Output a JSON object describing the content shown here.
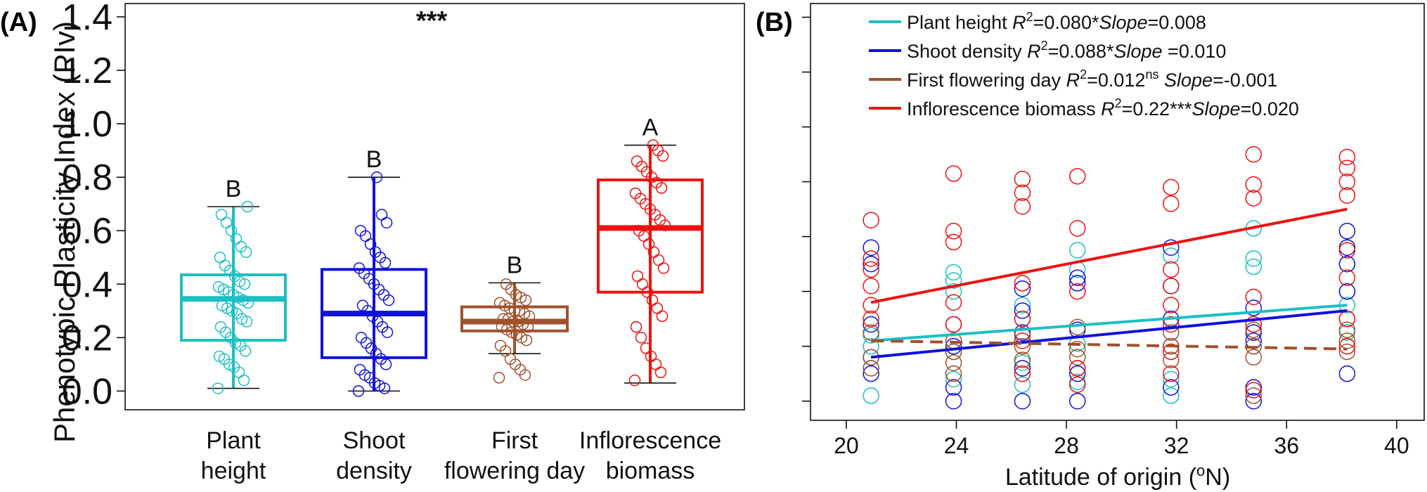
{
  "chart_data": [
    {
      "panel_label": "(A)",
      "type": "box",
      "ylabel": "Phenotypic Plasticity Index (PIv)",
      "ylim": [
        -0.07,
        1.45
      ],
      "yticks": [
        "0.0",
        "0.2",
        "0.4",
        "0.6",
        "0.8",
        "1.0",
        "1.2",
        "1.4"
      ],
      "significance": "***",
      "categories": [
        {
          "label_lines": [
            "Plant",
            "height"
          ],
          "color": "#1DBFC3",
          "min": 0.01,
          "q1": 0.19,
          "median": 0.345,
          "q3": 0.435,
          "max": 0.69,
          "group": "B",
          "points": [
            0.01,
            0.04,
            0.07,
            0.09,
            0.1,
            0.12,
            0.13,
            0.15,
            0.17,
            0.18,
            0.2,
            0.22,
            0.24,
            0.26,
            0.27,
            0.29,
            0.3,
            0.31,
            0.32,
            0.33,
            0.34,
            0.35,
            0.36,
            0.37,
            0.38,
            0.39,
            0.4,
            0.41,
            0.43,
            0.45,
            0.47,
            0.5,
            0.52,
            0.54,
            0.57,
            0.6,
            0.63,
            0.66,
            0.69
          ]
        },
        {
          "label_lines": [
            "Shoot",
            "density"
          ],
          "color": "#1111DD",
          "min": 0.0,
          "q1": 0.125,
          "median": 0.29,
          "q3": 0.455,
          "max": 0.8,
          "group": "B",
          "points": [
            0.0,
            0.01,
            0.02,
            0.03,
            0.05,
            0.06,
            0.08,
            0.1,
            0.12,
            0.14,
            0.16,
            0.18,
            0.2,
            0.22,
            0.24,
            0.26,
            0.28,
            0.3,
            0.32,
            0.34,
            0.36,
            0.38,
            0.4,
            0.42,
            0.44,
            0.46,
            0.48,
            0.5,
            0.52,
            0.55,
            0.58,
            0.6,
            0.63,
            0.66,
            0.8
          ]
        },
        {
          "label_lines": [
            "First",
            "flowering day"
          ],
          "color": "#A0522D",
          "min": 0.14,
          "q1": 0.225,
          "median": 0.26,
          "q3": 0.315,
          "max": 0.405,
          "group": "B",
          "points": [
            0.05,
            0.06,
            0.08,
            0.1,
            0.12,
            0.15,
            0.17,
            0.19,
            0.2,
            0.21,
            0.22,
            0.23,
            0.24,
            0.24,
            0.25,
            0.26,
            0.26,
            0.27,
            0.27,
            0.28,
            0.29,
            0.3,
            0.3,
            0.31,
            0.32,
            0.33,
            0.34,
            0.35,
            0.36,
            0.38,
            0.4
          ]
        },
        {
          "label_lines": [
            "Inflorescence",
            "biomass"
          ],
          "color": "#EE1111",
          "min": 0.03,
          "q1": 0.37,
          "median": 0.61,
          "q3": 0.79,
          "max": 0.92,
          "group": "A",
          "points": [
            0.04,
            0.07,
            0.1,
            0.13,
            0.16,
            0.2,
            0.24,
            0.28,
            0.31,
            0.34,
            0.37,
            0.4,
            0.43,
            0.46,
            0.49,
            0.52,
            0.55,
            0.58,
            0.6,
            0.62,
            0.64,
            0.66,
            0.68,
            0.7,
            0.72,
            0.74,
            0.76,
            0.78,
            0.8,
            0.82,
            0.84,
            0.86,
            0.88,
            0.9,
            0.92
          ]
        }
      ]
    },
    {
      "panel_label": "(B)",
      "type": "scatter",
      "xlabel": "Latitude of origin (",
      "xlabel_sup": "o",
      "xlabel_unit": "N)",
      "xlim": [
        18.7,
        41.0
      ],
      "ylim": [
        -0.07,
        1.45
      ],
      "xticks": [
        20,
        24,
        28,
        32,
        36,
        40
      ],
      "latitudes": [
        20.9,
        23.9,
        26.4,
        28.4,
        31.8,
        34.8,
        38.2
      ],
      "series": [
        {
          "name": "Plant height",
          "r2_label": "R",
          "r2_sup": "2",
          "r2_value": "=0.080*",
          "slope_label": "Slope",
          "slope_value": "=0.008",
          "color": "#1DBFC3",
          "dashed": false,
          "line": [
            [
              20.9,
              0.22
            ],
            [
              38.2,
              0.35
            ]
          ],
          "points": [
            [
              20.9,
              0.02
            ],
            [
              20.9,
              0.12
            ],
            [
              20.9,
              0.2
            ],
            [
              20.9,
              0.24
            ],
            [
              23.9,
              0.08
            ],
            [
              23.9,
              0.18
            ],
            [
              23.9,
              0.4
            ],
            [
              23.9,
              0.44
            ],
            [
              23.9,
              0.47
            ],
            [
              26.4,
              0.06
            ],
            [
              26.4,
              0.14
            ],
            [
              26.4,
              0.3
            ],
            [
              26.4,
              0.35
            ],
            [
              28.4,
              0.07
            ],
            [
              28.4,
              0.21
            ],
            [
              28.4,
              0.48
            ],
            [
              28.4,
              0.55
            ],
            [
              31.8,
              0.02
            ],
            [
              31.8,
              0.08
            ],
            [
              31.8,
              0.3
            ],
            [
              31.8,
              0.53
            ],
            [
              34.8,
              0.2
            ],
            [
              34.8,
              0.49
            ],
            [
              34.8,
              0.52
            ],
            [
              34.8,
              0.63
            ],
            [
              38.2,
              0.25
            ],
            [
              38.2,
              0.35
            ],
            [
              38.2,
              0.4
            ],
            [
              38.2,
              0.5
            ]
          ]
        },
        {
          "name": "Shoot density",
          "r2_label": "R",
          "r2_sup": "2",
          "r2_value": "=0.088*",
          "slope_label": "Slope",
          "slope_value": " =0.010",
          "color": "#1111DD",
          "dashed": false,
          "line": [
            [
              20.9,
              0.16
            ],
            [
              38.2,
              0.33
            ]
          ],
          "points": [
            [
              20.9,
              0.1
            ],
            [
              20.9,
              0.16
            ],
            [
              20.9,
              0.28
            ],
            [
              20.9,
              0.5
            ],
            [
              20.9,
              0.56
            ],
            [
              23.9,
              0.0
            ],
            [
              23.9,
              0.05
            ],
            [
              23.9,
              0.2
            ],
            [
              23.9,
              0.28
            ],
            [
              26.4,
              0.0
            ],
            [
              26.4,
              0.12
            ],
            [
              26.4,
              0.25
            ],
            [
              26.4,
              0.33
            ],
            [
              26.4,
              0.41
            ],
            [
              28.4,
              0.0
            ],
            [
              28.4,
              0.1
            ],
            [
              28.4,
              0.26
            ],
            [
              28.4,
              0.43
            ],
            [
              28.4,
              0.45
            ],
            [
              31.8,
              0.05
            ],
            [
              31.8,
              0.2
            ],
            [
              31.8,
              0.3
            ],
            [
              31.8,
              0.42
            ],
            [
              31.8,
              0.56
            ],
            [
              34.8,
              0.0
            ],
            [
              34.8,
              0.05
            ],
            [
              34.8,
              0.22
            ],
            [
              34.8,
              0.25
            ],
            [
              34.8,
              0.34
            ],
            [
              38.2,
              0.1
            ],
            [
              38.2,
              0.4
            ],
            [
              38.2,
              0.5
            ],
            [
              38.2,
              0.56
            ],
            [
              38.2,
              0.62
            ]
          ]
        },
        {
          "name": "First flowering day",
          "r2_label": "R",
          "r2_sup": "2",
          "r2_value": "=0.012",
          "r2_sup2": "ns",
          "slope_label": "Slope",
          "slope_value": "=-0.001",
          "color": "#A0522D",
          "dashed": true,
          "line": [
            [
              20.9,
              0.22
            ],
            [
              38.2,
              0.19
            ]
          ],
          "points": [
            [
              20.9,
              0.12
            ],
            [
              20.9,
              0.16
            ],
            [
              20.9,
              0.25
            ],
            [
              23.9,
              0.1
            ],
            [
              23.9,
              0.14
            ],
            [
              23.9,
              0.18
            ],
            [
              23.9,
              0.22
            ],
            [
              26.4,
              0.15
            ],
            [
              26.4,
              0.2
            ],
            [
              26.4,
              0.24
            ],
            [
              28.4,
              0.12
            ],
            [
              28.4,
              0.16
            ],
            [
              28.4,
              0.19
            ],
            [
              28.4,
              0.27
            ],
            [
              31.8,
              0.15
            ],
            [
              31.8,
              0.2
            ],
            [
              31.8,
              0.25
            ],
            [
              34.8,
              0.02
            ],
            [
              34.8,
              0.16
            ],
            [
              34.8,
              0.2
            ],
            [
              34.8,
              0.26
            ],
            [
              38.2,
              0.18
            ],
            [
              38.2,
              0.22
            ],
            [
              38.2,
              0.26
            ],
            [
              38.2,
              0.3
            ]
          ]
        },
        {
          "name": "Inflorescence biomass",
          "r2_label": "R",
          "r2_sup": "2",
          "r2_value": "=0.22***",
          "slope_label": "Slope",
          "slope_value": "=0.020",
          "color": "#EE1111",
          "dashed": false,
          "line": [
            [
              20.9,
              0.36
            ],
            [
              38.2,
              0.7
            ]
          ],
          "points": [
            [
              20.9,
              0.3
            ],
            [
              20.9,
              0.35
            ],
            [
              20.9,
              0.42
            ],
            [
              20.9,
              0.48
            ],
            [
              20.9,
              0.52
            ],
            [
              20.9,
              0.66
            ],
            [
              23.9,
              0.28
            ],
            [
              23.9,
              0.36
            ],
            [
              23.9,
              0.58
            ],
            [
              23.9,
              0.62
            ],
            [
              23.9,
              0.83
            ],
            [
              26.4,
              0.1
            ],
            [
              26.4,
              0.22
            ],
            [
              26.4,
              0.3
            ],
            [
              26.4,
              0.43
            ],
            [
              26.4,
              0.71
            ],
            [
              26.4,
              0.76
            ],
            [
              26.4,
              0.81
            ],
            [
              28.4,
              0.06
            ],
            [
              28.4,
              0.12
            ],
            [
              28.4,
              0.4
            ],
            [
              28.4,
              0.63
            ],
            [
              28.4,
              0.82
            ],
            [
              31.8,
              0.1
            ],
            [
              31.8,
              0.18
            ],
            [
              31.8,
              0.28
            ],
            [
              31.8,
              0.35
            ],
            [
              31.8,
              0.42
            ],
            [
              31.8,
              0.48
            ],
            [
              31.8,
              0.72
            ],
            [
              31.8,
              0.78
            ],
            [
              34.8,
              0.04
            ],
            [
              34.8,
              0.28
            ],
            [
              34.8,
              0.38
            ],
            [
              34.8,
              0.74
            ],
            [
              34.8,
              0.79
            ],
            [
              34.8,
              0.9
            ],
            [
              38.2,
              0.2
            ],
            [
              38.2,
              0.3
            ],
            [
              38.2,
              0.45
            ],
            [
              38.2,
              0.55
            ],
            [
              38.2,
              0.75
            ],
            [
              38.2,
              0.8
            ],
            [
              38.2,
              0.85
            ],
            [
              38.2,
              0.89
            ]
          ]
        }
      ]
    }
  ]
}
